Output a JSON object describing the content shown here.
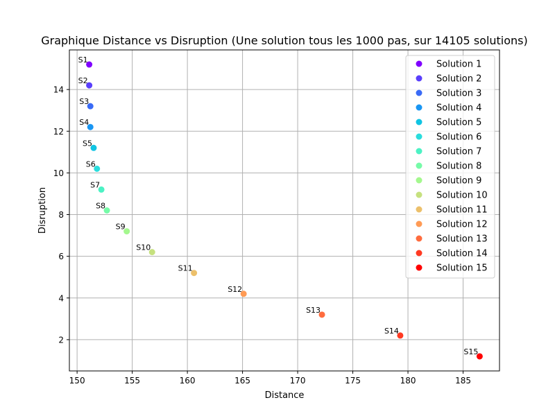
{
  "chart_data": {
    "type": "scatter",
    "title": "Graphique Distance vs Disruption (Une solution tous les 1000 pas, sur 14105 solutions)",
    "xlabel": "Distance",
    "ylabel": "Disruption",
    "xlim": [
      149.3,
      188.3
    ],
    "ylim": [
      0.5,
      15.9
    ],
    "xticks": [
      150,
      155,
      160,
      165,
      170,
      175,
      180,
      185
    ],
    "yticks": [
      2,
      4,
      6,
      8,
      10,
      12,
      14
    ],
    "xtick_labels": [
      "150",
      "155",
      "160",
      "165",
      "170",
      "175",
      "180",
      "185"
    ],
    "ytick_labels": [
      "2",
      "4",
      "6",
      "8",
      "10",
      "12",
      "14"
    ],
    "grid": true,
    "legend_position": "top-right",
    "series": [
      {
        "name": "Solution 1",
        "label": "S1",
        "x": 151.1,
        "y": 15.2,
        "color": "#8000ff"
      },
      {
        "name": "Solution 2",
        "label": "S2",
        "x": 151.1,
        "y": 14.2,
        "color": "#5a3ffc"
      },
      {
        "name": "Solution 3",
        "label": "S3",
        "x": 151.2,
        "y": 13.2,
        "color": "#3a6bf6"
      },
      {
        "name": "Solution 4",
        "label": "S4",
        "x": 151.2,
        "y": 12.2,
        "color": "#1996f3"
      },
      {
        "name": "Solution 5",
        "label": "S5",
        "x": 151.5,
        "y": 11.2,
        "color": "#10c4e3"
      },
      {
        "name": "Solution 6",
        "label": "S6",
        "x": 151.8,
        "y": 10.2,
        "color": "#2adddd"
      },
      {
        "name": "Solution 7",
        "label": "S7",
        "x": 152.2,
        "y": 9.2,
        "color": "#4cf2c4"
      },
      {
        "name": "Solution 8",
        "label": "S8",
        "x": 152.7,
        "y": 8.2,
        "color": "#76fba8"
      },
      {
        "name": "Solution 9",
        "label": "S9",
        "x": 154.5,
        "y": 7.2,
        "color": "#a4f88e"
      },
      {
        "name": "Solution 10",
        "label": "S10",
        "x": 156.8,
        "y": 6.2,
        "color": "#c6e17f"
      },
      {
        "name": "Solution 11",
        "label": "S11",
        "x": 160.6,
        "y": 5.2,
        "color": "#ecc06b"
      },
      {
        "name": "Solution 12",
        "label": "S12",
        "x": 165.1,
        "y": 4.2,
        "color": "#ff9b55"
      },
      {
        "name": "Solution 13",
        "label": "S13",
        "x": 172.2,
        "y": 3.2,
        "color": "#ff6c3e"
      },
      {
        "name": "Solution 14",
        "label": "S14",
        "x": 179.3,
        "y": 2.2,
        "color": "#ff3a22"
      },
      {
        "name": "Solution 15",
        "label": "S15",
        "x": 186.5,
        "y": 1.2,
        "color": "#ff0000"
      }
    ]
  }
}
